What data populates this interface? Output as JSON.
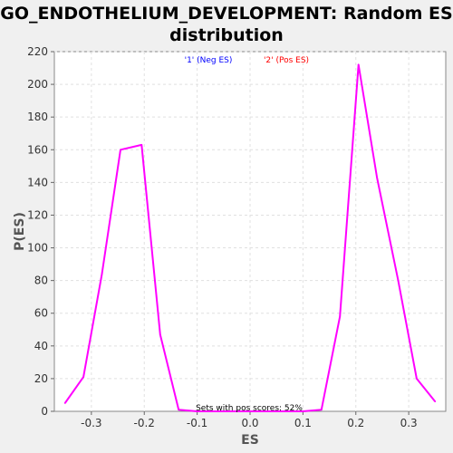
{
  "chart_data": {
    "type": "line",
    "title": "GO_ENDOTHELIUM_DEVELOPMENT: Random ES distribution",
    "title_lines": [
      "GO_ENDOTHELIUM_DEVELOPMENT: Random ES",
      "distribution"
    ],
    "xlabel": "ES",
    "ylabel": "P(ES)",
    "xlim": [
      -0.37,
      0.37
    ],
    "ylim": [
      0,
      220
    ],
    "x_ticks": [
      -0.3,
      -0.2,
      -0.1,
      0.0,
      0.1,
      0.2,
      0.3
    ],
    "x_tick_labels": [
      "-0.3",
      "-0.2",
      "-0.1",
      "0.0",
      "0.1",
      "0.2",
      "0.3"
    ],
    "y_ticks": [
      0,
      20,
      40,
      60,
      80,
      100,
      120,
      140,
      160,
      180,
      200,
      220
    ],
    "y_tick_labels": [
      "0",
      "20",
      "40",
      "60",
      "80",
      "100",
      "120",
      "140",
      "160",
      "180",
      "200",
      "220"
    ],
    "grid": true,
    "legend_placement": "top-center",
    "legend": [
      {
        "label": "'1' (Neg ES)",
        "color": "#0000ff"
      },
      {
        "label": "'2' (Pos ES)",
        "color": "#ff0000"
      }
    ],
    "annotation": "Sets with pos scores: 52%",
    "series": [
      {
        "line_color": "#ff00ff",
        "x": [
          -0.35,
          -0.315,
          -0.28,
          -0.245,
          -0.205,
          -0.17,
          -0.135,
          -0.1,
          -0.065,
          -0.03,
          0.0,
          0.03,
          0.065,
          0.1,
          0.135,
          0.17,
          0.205,
          0.24,
          0.28,
          0.315,
          0.35
        ],
        "values": [
          5,
          21,
          84,
          160,
          163,
          47,
          1,
          0,
          0,
          0,
          0,
          0,
          0,
          0,
          1,
          58,
          212,
          143,
          80,
          20,
          6
        ]
      }
    ]
  }
}
